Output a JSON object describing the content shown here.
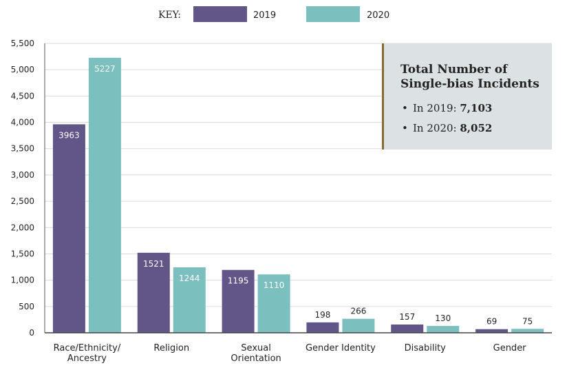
{
  "legend": {
    "key_label": "KEY:",
    "items": [
      {
        "label": "2019",
        "color": "#625588"
      },
      {
        "label": "2020",
        "color": "#7bbfbe"
      }
    ]
  },
  "info_box": {
    "title_line1": "Total Number of",
    "title_line2": "Single-bias Incidents",
    "items": [
      {
        "prefix": "In 2019: ",
        "value": "7,103"
      },
      {
        "prefix": "In 2020: ",
        "value": "8,052"
      }
    ],
    "accent_color": "#8a6a2a",
    "background": "#dce2e4"
  },
  "chart_data": {
    "type": "bar",
    "categories": [
      [
        "Race/Ethnicity/",
        "Ancestry"
      ],
      [
        "Religion"
      ],
      [
        "Sexual",
        "Orientation"
      ],
      [
        "Gender Identity"
      ],
      [
        "Disability"
      ],
      [
        "Gender"
      ]
    ],
    "series": [
      {
        "name": "2019",
        "color": "#625588",
        "values": [
          3963,
          1521,
          1195,
          198,
          157,
          69
        ]
      },
      {
        "name": "2020",
        "color": "#7bbfbe",
        "values": [
          5227,
          1244,
          1110,
          266,
          130,
          75
        ]
      }
    ],
    "ylim": [
      0,
      5500
    ],
    "yticks": [
      0,
      500,
      1000,
      1500,
      2000,
      2500,
      3000,
      3500,
      4000,
      4500,
      5000,
      5500
    ],
    "ytick_labels": [
      "0",
      "500",
      "1,000",
      "1,500",
      "2,000",
      "2,500",
      "3,000",
      "3,500",
      "4,000",
      "4,500",
      "5,000",
      "5,500"
    ],
    "grid": true,
    "legend_position": "top"
  }
}
